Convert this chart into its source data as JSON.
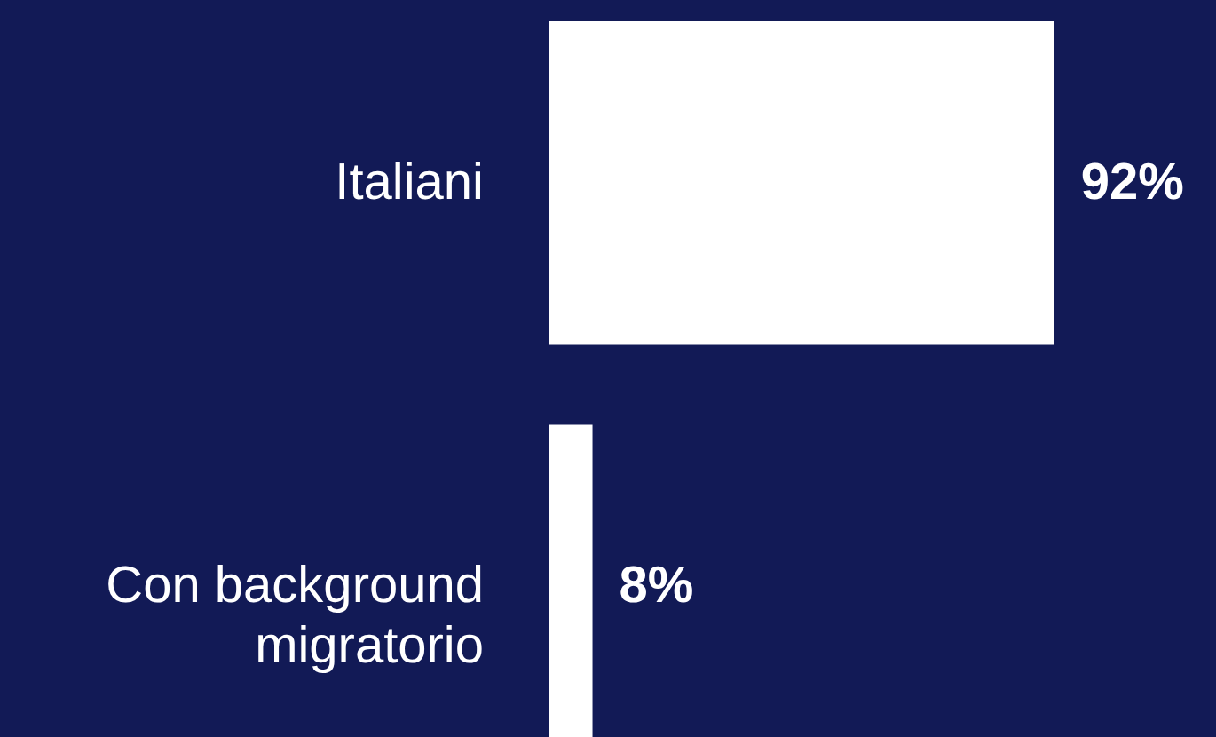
{
  "chart_data": {
    "type": "bar",
    "orientation": "horizontal",
    "categories": [
      "Italiani",
      "Con background migratorio"
    ],
    "series": [
      {
        "color": "#ffffff",
        "values": [
          92,
          8
        ],
        "value_labels": [
          "92%",
          "8%"
        ]
      }
    ]
  }
}
